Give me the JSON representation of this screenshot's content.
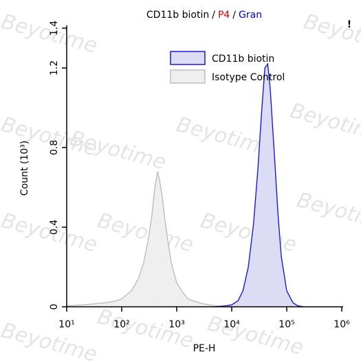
{
  "chart_data": {
    "type": "histogram-area",
    "title_parts": [
      {
        "text": "CD11b biotin",
        "color": "#000000"
      },
      {
        "text": "/",
        "color": "#000000"
      },
      {
        "text": "P4",
        "color": "#d00000"
      },
      {
        "text": "/",
        "color": "#000000"
      },
      {
        "text": "Gran",
        "color": "#0000cc"
      }
    ],
    "marker": "!",
    "watermark": "Beyotime",
    "xlabel": "PE-H",
    "ylabel": "Count (10³)",
    "xscale": "log",
    "xlim": [
      10,
      1000000
    ],
    "xticks": [
      {
        "value": 10,
        "label": "10¹"
      },
      {
        "value": 100,
        "label": "10²"
      },
      {
        "value": 1000,
        "label": "10³"
      },
      {
        "value": 10000,
        "label": "10⁴"
      },
      {
        "value": 100000,
        "label": "10⁵"
      },
      {
        "value": 1000000,
        "label": "10⁶"
      }
    ],
    "ylim": [
      0,
      1.4
    ],
    "yticks": [
      0,
      0.4,
      0.8,
      1.2,
      1.4
    ],
    "legend": "upper right",
    "series": [
      {
        "name": "CD11b biotin",
        "color": "#1a1ad6",
        "fill": "#dcdcf4",
        "x": [
          5000,
          8000,
          10000,
          13000,
          16000,
          20000,
          25000,
          30000,
          35000,
          40000,
          45000,
          50000,
          60000,
          70000,
          80000,
          100000,
          130000,
          160000,
          200000
        ],
        "values": [
          0,
          0.005,
          0.01,
          0.03,
          0.08,
          0.2,
          0.42,
          0.7,
          0.98,
          1.2,
          1.22,
          1.1,
          0.75,
          0.45,
          0.25,
          0.08,
          0.02,
          0.005,
          0
        ]
      },
      {
        "name": "Isotype Control",
        "color": "#bdbdbd",
        "fill": "#efefef",
        "x": [
          10,
          20,
          50,
          80,
          100,
          150,
          200,
          250,
          300,
          350,
          400,
          450,
          500,
          550,
          600,
          700,
          800,
          1000,
          1300,
          1600,
          2000,
          3000,
          5000,
          10000
        ],
        "values": [
          0.005,
          0.01,
          0.02,
          0.03,
          0.04,
          0.08,
          0.14,
          0.22,
          0.33,
          0.45,
          0.6,
          0.68,
          0.62,
          0.55,
          0.45,
          0.32,
          0.22,
          0.12,
          0.07,
          0.04,
          0.03,
          0.015,
          0.005,
          0
        ]
      }
    ]
  }
}
